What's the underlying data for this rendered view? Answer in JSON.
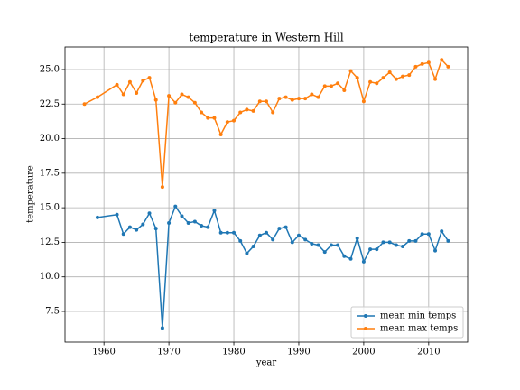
{
  "chart_data": {
    "type": "line",
    "title": "temperature in Western Hill",
    "xlabel": "year",
    "ylabel": "temperature",
    "x": [
      1957,
      1959,
      1962,
      1963,
      1964,
      1965,
      1966,
      1967,
      1968,
      1969,
      1970,
      1971,
      1972,
      1973,
      1974,
      1975,
      1976,
      1977,
      1978,
      1979,
      1980,
      1981,
      1982,
      1983,
      1984,
      1985,
      1986,
      1987,
      1988,
      1989,
      1990,
      1991,
      1992,
      1993,
      1994,
      1995,
      1996,
      1997,
      1998,
      1999,
      2000,
      2001,
      2002,
      2003,
      2004,
      2005,
      2006,
      2007,
      2008,
      2009,
      2010,
      2011,
      2012,
      2013
    ],
    "series": [
      {
        "name": "mean min temps",
        "color": "#1f77b4",
        "values": [
          null,
          14.3,
          14.5,
          13.1,
          13.6,
          13.4,
          13.8,
          14.6,
          13.5,
          6.3,
          13.9,
          15.1,
          14.4,
          13.9,
          14.0,
          13.7,
          13.6,
          14.8,
          13.2,
          13.2,
          13.2,
          12.6,
          11.7,
          12.2,
          13.0,
          13.2,
          12.7,
          13.5,
          13.6,
          12.5,
          13.0,
          12.7,
          12.4,
          12.3,
          11.8,
          12.3,
          12.3,
          11.5,
          11.3,
          12.8,
          11.1,
          12.0,
          12.0,
          12.5,
          12.5,
          12.3,
          12.2,
          12.6,
          12.6,
          13.1,
          13.1,
          11.9,
          13.3,
          12.6
        ]
      },
      {
        "name": "mean max temps",
        "color": "#ff7f0e",
        "values": [
          22.5,
          23.0,
          23.9,
          23.2,
          24.1,
          23.3,
          24.2,
          24.4,
          22.8,
          16.5,
          23.1,
          22.6,
          23.2,
          23.0,
          22.6,
          21.9,
          21.5,
          21.5,
          20.3,
          21.2,
          21.3,
          21.9,
          22.1,
          22.0,
          22.7,
          22.7,
          21.9,
          22.9,
          23.0,
          22.8,
          22.9,
          22.9,
          23.2,
          23.0,
          23.8,
          23.8,
          24.0,
          23.5,
          24.9,
          24.4,
          22.7,
          24.1,
          24.0,
          24.4,
          24.8,
          24.3,
          24.5,
          24.6,
          25.2,
          25.4,
          25.5,
          24.3,
          25.7,
          25.2
        ]
      }
    ],
    "xlim": [
      1954,
      2016
    ],
    "xticks": [
      1960,
      1970,
      1980,
      1990,
      2000,
      2010
    ],
    "ylim": [
      5.28,
      26.63
    ],
    "yticks": [
      7.5,
      {
        "value": 10,
        "label": "10.0"
      },
      12.5,
      {
        "value": 15,
        "label": "15.0"
      },
      17.5,
      {
        "value": 20,
        "label": "20.0"
      },
      22.5,
      {
        "value": 25,
        "label": "25.0"
      }
    ],
    "grid": true,
    "legend": "lower right"
  }
}
